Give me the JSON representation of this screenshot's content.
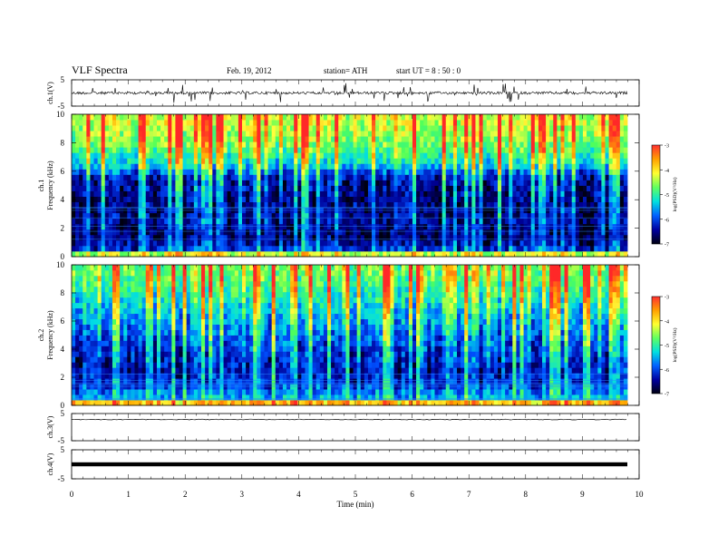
{
  "header": {
    "title": "VLF  Spectra",
    "date": "Feb. 19, 2012",
    "station": "station= ATH",
    "start": "start  UT  =   8  : 50 : 0"
  },
  "colorbar": {
    "label": "log(PSD)(V²/Hz)",
    "ticks": [
      -3,
      -4,
      -5,
      -6,
      -7
    ],
    "colors": [
      "#ff3030",
      "#ffa000",
      "#ffff30",
      "#60ff60",
      "#00e0e0",
      "#0060ff",
      "#0000a0",
      "#000010"
    ]
  },
  "chart_data": [
    {
      "type": "line",
      "panel": "ch1-waveform",
      "ylabel": "ch.1(V)",
      "ylim": [
        -5,
        5
      ],
      "yticks": [
        -5,
        5
      ],
      "x": [
        0,
        1,
        2,
        3,
        4,
        5,
        6,
        7,
        8,
        9,
        9.8
      ],
      "y": [
        0,
        0,
        0,
        0,
        0,
        0,
        0,
        0,
        0,
        0,
        0
      ],
      "trace": "dense impulsive noise, spikes up to about ±3 V"
    },
    {
      "type": "heatmap",
      "panel": "ch1-spectrogram",
      "ylabel": "ch.1 Frequency (kHz)",
      "ylim": [
        0,
        10
      ],
      "yticks": [
        0,
        2,
        4,
        6,
        8,
        10
      ],
      "color_scale": "log(PSD)(V²/Hz)",
      "zlim": [
        -7,
        -3
      ],
      "profile_khz": [
        0.5,
        1.5,
        2.5,
        3.5,
        4.5,
        5.5,
        6.5,
        7.5,
        8.5,
        9.5
      ],
      "profile_logpsd": [
        -6.3,
        -6.8,
        -6.6,
        -6.7,
        -6.6,
        -6.5,
        -5.6,
        -5.1,
        -4.8,
        -4.6
      ]
    },
    {
      "type": "heatmap",
      "panel": "ch2-spectrogram",
      "ylabel": "ch.2 Frequency (kHz)",
      "ylim": [
        0,
        10
      ],
      "yticks": [
        0,
        2,
        4,
        6,
        8,
        10
      ],
      "color_scale": "log(PSD)(V²/Hz)",
      "zlim": [
        -7,
        -3
      ],
      "profile_khz": [
        0.5,
        1.5,
        2.5,
        3.5,
        4.5,
        5.5,
        6.5,
        7.5,
        8.5,
        9.5
      ],
      "profile_logpsd": [
        -5.8,
        -6.3,
        -6.5,
        -6.4,
        -6.2,
        -6.0,
        -5.8,
        -5.5,
        -5.2,
        -5.0
      ]
    },
    {
      "type": "line",
      "panel": "ch3-waveform",
      "ylabel": "ch.3(V)",
      "ylim": [
        -5,
        5
      ],
      "yticks": [
        -5,
        5
      ],
      "x": [
        0,
        1,
        2,
        3,
        4,
        5,
        6,
        7,
        8,
        9,
        9.8
      ],
      "y": [
        2.8,
        2.8,
        2.8,
        2.8,
        2.8,
        2.8,
        2.8,
        2.8,
        2.8,
        2.8,
        2.8
      ]
    },
    {
      "type": "line",
      "panel": "ch4-waveform",
      "ylabel": "ch.4(V)",
      "ylim": [
        -5,
        5
      ],
      "yticks": [
        -5,
        5
      ],
      "x": [
        0,
        1,
        2,
        3,
        4,
        5,
        6,
        7,
        8,
        9,
        9.8
      ],
      "y": [
        0,
        0,
        0,
        0,
        0,
        0,
        0,
        0,
        0,
        0,
        0
      ]
    }
  ],
  "xaxis": {
    "label": "Time  (min)",
    "ticks": [
      "0",
      "1",
      "2",
      "3",
      "4",
      "5",
      "6",
      "7",
      "8",
      "9",
      "10"
    ],
    "lim": [
      0,
      10
    ],
    "data_end": 9.8
  }
}
